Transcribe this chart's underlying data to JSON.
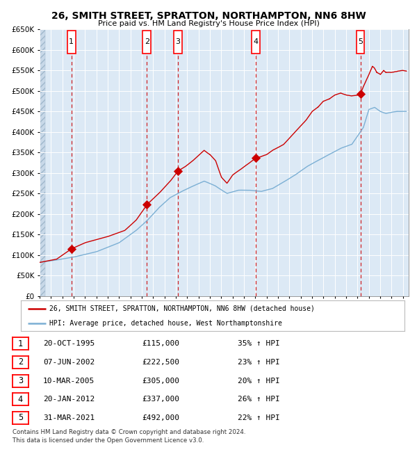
{
  "title": "26, SMITH STREET, SPRATTON, NORTHAMPTON, NN6 8HW",
  "subtitle": "Price paid vs. HM Land Registry's House Price Index (HPI)",
  "ylim": [
    0,
    650000
  ],
  "ytick_step": 50000,
  "plot_bg_color": "#dce9f5",
  "grid_color": "#ffffff",
  "red_line_color": "#cc0000",
  "blue_line_color": "#7bafd4",
  "sale_dates_x": [
    1995.8,
    2002.44,
    2005.19,
    2012.05,
    2021.25
  ],
  "sale_prices_y": [
    115000,
    222500,
    305000,
    337000,
    492000
  ],
  "sale_labels": [
    "1",
    "2",
    "3",
    "4",
    "5"
  ],
  "vline_color": "#cc0000",
  "legend_red_label": "26, SMITH STREET, SPRATTON, NORTHAMPTON, NN6 8HW (detached house)",
  "legend_blue_label": "HPI: Average price, detached house, West Northamptonshire",
  "table_rows": [
    [
      "1",
      "20-OCT-1995",
      "£115,000",
      "35% ↑ HPI"
    ],
    [
      "2",
      "07-JUN-2002",
      "£222,500",
      "23% ↑ HPI"
    ],
    [
      "3",
      "10-MAR-2005",
      "£305,000",
      "20% ↑ HPI"
    ],
    [
      "4",
      "20-JAN-2012",
      "£337,000",
      "26% ↑ HPI"
    ],
    [
      "5",
      "31-MAR-2021",
      "£492,000",
      "22% ↑ HPI"
    ]
  ],
  "footer_text": "Contains HM Land Registry data © Crown copyright and database right 2024.\nThis data is licensed under the Open Government Licence v3.0.",
  "xmin": 1993,
  "xmax": 2025.5
}
